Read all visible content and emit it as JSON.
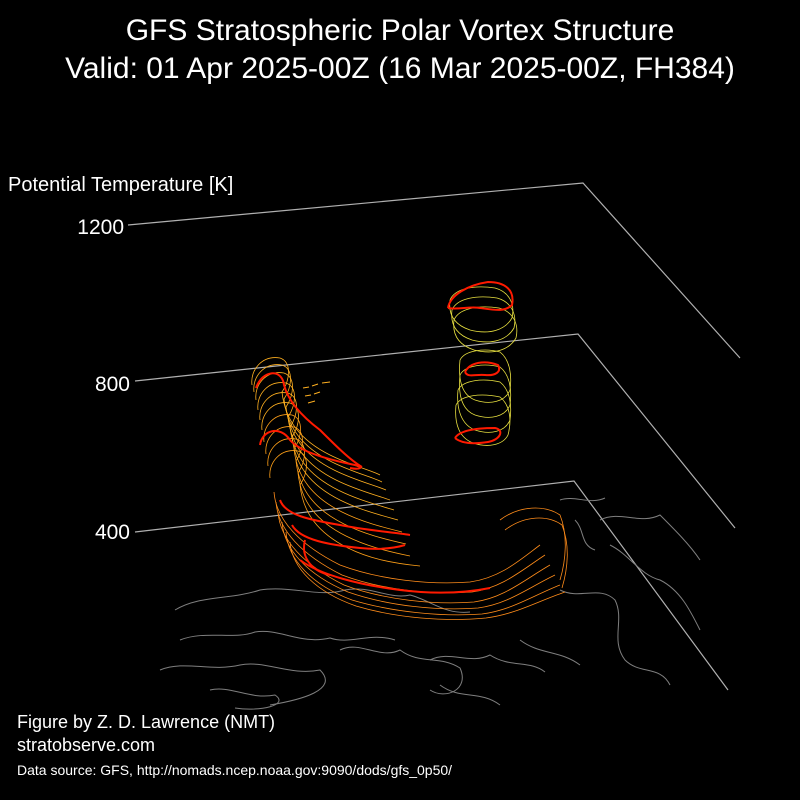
{
  "chart_data": {
    "type": "3d-isosurface",
    "title": "GFS Stratospheric Polar Vortex Structure",
    "subtitle": "Valid: 01 Apr 2025-00Z  (16 Mar 2025-00Z, FH384)",
    "zlabel": "Potential Temperature [K]",
    "z_ticks": [
      "1200",
      "800",
      "400"
    ],
    "zlim": [
      0,
      1200
    ],
    "grid": true,
    "colors": {
      "contour_low": "#ff8c1a",
      "contour_mid": "#ffb020",
      "contour_high": "#e8e040",
      "edge": "#ff0000",
      "coast": "#808080",
      "grid": "#b0b0b0"
    }
  },
  "credits": {
    "author": "Figure by Z. D. Lawrence (NMT)",
    "site": "stratobserve.com",
    "source": "Data source: GFS, http://nomads.ncep.noaa.gov:9090/dods/gfs_0p50/"
  }
}
